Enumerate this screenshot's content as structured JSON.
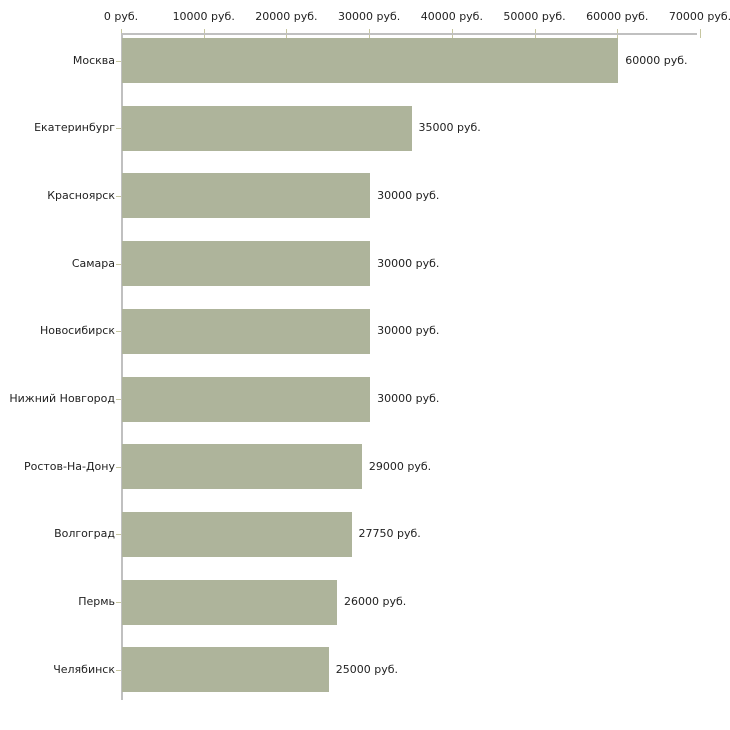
{
  "chart": {
    "background": "#ffffff",
    "bar_color": "#aeb49b",
    "axis_color": "#c0c0c0",
    "tick_color": "#c6c6a0",
    "text_color": "#222222"
  },
  "chart_data": {
    "type": "bar",
    "orientation": "horizontal",
    "title": "",
    "unit": "руб.",
    "categories": [
      "Москва",
      "Екатеринбург",
      "Красноярск",
      "Самара",
      "Новосибирск",
      "Нижний Новгород",
      "Ростов-На-Дону",
      "Волгоград",
      "Пермь",
      "Челябинск"
    ],
    "values": [
      60000,
      35000,
      30000,
      30000,
      30000,
      30000,
      29000,
      27750,
      26000,
      25000
    ],
    "value_labels": [
      "60000 руб.",
      "35000 руб.",
      "30000 руб.",
      "30000 руб.",
      "30000 руб.",
      "30000 руб.",
      "29000 руб.",
      "27750 руб.",
      "26000 руб.",
      "25000 руб."
    ],
    "x_axis": {
      "position": "top",
      "min": 0,
      "max": 70000,
      "tick_interval": 10000,
      "tick_labels": [
        "0 руб.",
        "10000 руб.",
        "20000 руб.",
        "30000 руб.",
        "40000 руб.",
        "50000 руб.",
        "60000 руб.",
        "70000 руб."
      ]
    },
    "grid": false,
    "legend": false
  }
}
